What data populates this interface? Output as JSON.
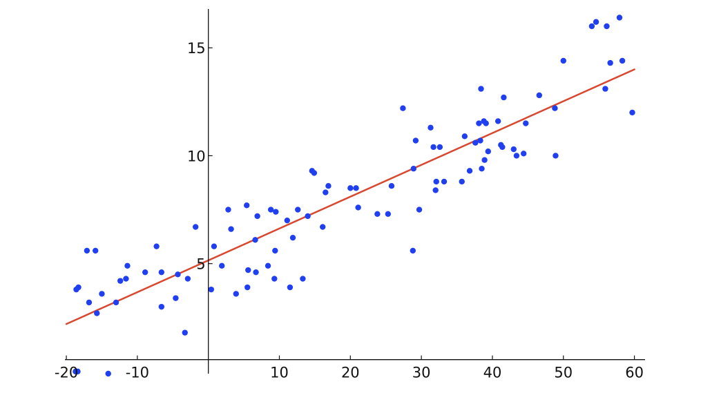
{
  "chart_data": {
    "type": "scatter",
    "title": "",
    "xlabel": "",
    "ylabel": "",
    "xlim": [
      -20.2,
      61.5
    ],
    "ylim": [
      -0.1,
      16.8
    ],
    "x_ticks": [
      -20,
      -10,
      10,
      20,
      30,
      40,
      50,
      60
    ],
    "y_ticks": [
      5,
      10,
      15
    ],
    "x_tick_labels": [
      "-20",
      "-10",
      "10",
      "20",
      "30",
      "40",
      "50",
      "60"
    ],
    "y_tick_labels": [
      "5",
      "10",
      "15"
    ],
    "grid": false,
    "legend": "none",
    "colors": {
      "points": "#1f3ff0",
      "fit_line": "#d9472f",
      "axes": "#111111"
    },
    "fit_line": {
      "x": [
        -20,
        60
      ],
      "y": [
        2.2,
        14.0
      ]
    },
    "series": [
      {
        "x": [
          -18.6,
          -18.3,
          -17.1,
          -16.8,
          -15.9,
          -15.7,
          -15.0,
          -18.4,
          -14.1,
          -13.0,
          -12.4,
          -11.6,
          -11.4,
          -8.9,
          -7.3,
          -6.6,
          -6.6,
          -4.6,
          -4.3,
          -3.3,
          -2.9,
          -1.8,
          0.4,
          0.8,
          1.9,
          2.8,
          3.2,
          3.9,
          5.4,
          5.5,
          5.6,
          6.7,
          6.6,
          6.9,
          8.4,
          8.8,
          9.3,
          9.4,
          9.5,
          11.1,
          11.5,
          11.9,
          12.6,
          13.3,
          14.0,
          14.6,
          14.9,
          16.1,
          16.5,
          16.9,
          20.0,
          20.8,
          21.1,
          23.8,
          25.3,
          25.8,
          27.4,
          28.8,
          28.9,
          29.2,
          29.7,
          31.3,
          31.7,
          32.1,
          32.0,
          32.6,
          33.2,
          35.7,
          36.1,
          36.8,
          37.6,
          38.1,
          38.3,
          38.4,
          38.5,
          38.8,
          38.9,
          39.1,
          39.4,
          40.8,
          41.2,
          41.4,
          41.6,
          43.0,
          43.4,
          44.4,
          44.7,
          46.6,
          48.8,
          48.9,
          50.0,
          54.0,
          54.6,
          55.9,
          56.1,
          56.6,
          57.9,
          58.3,
          59.7,
          -18.7
        ],
        "y": [
          3.8,
          3.9,
          5.6,
          3.2,
          5.6,
          2.7,
          3.6,
          0.0,
          -0.1,
          3.2,
          4.2,
          4.3,
          4.9,
          4.6,
          5.8,
          3.0,
          4.6,
          3.4,
          4.5,
          1.8,
          4.3,
          6.7,
          3.8,
          5.8,
          4.9,
          7.5,
          6.6,
          3.6,
          7.7,
          3.9,
          4.7,
          4.6,
          6.1,
          7.2,
          4.9,
          7.5,
          4.3,
          5.6,
          7.4,
          7.0,
          3.9,
          6.2,
          7.5,
          4.3,
          7.2,
          9.3,
          9.2,
          6.7,
          8.3,
          8.6,
          8.5,
          8.5,
          7.6,
          7.3,
          7.3,
          8.6,
          12.2,
          5.6,
          9.4,
          10.7,
          7.5,
          11.3,
          10.4,
          8.8,
          8.4,
          10.4,
          8.8,
          8.8,
          10.9,
          9.3,
          10.6,
          11.5,
          10.7,
          13.1,
          9.4,
          11.6,
          9.8,
          11.5,
          10.2,
          11.6,
          10.5,
          10.4,
          12.7,
          10.3,
          10.0,
          10.1,
          11.5,
          12.8,
          12.2,
          10.0,
          14.4,
          16.0,
          16.2,
          13.1,
          16.0,
          14.3,
          16.4,
          14.4,
          12.0,
          0.0
        ]
      }
    ]
  }
}
